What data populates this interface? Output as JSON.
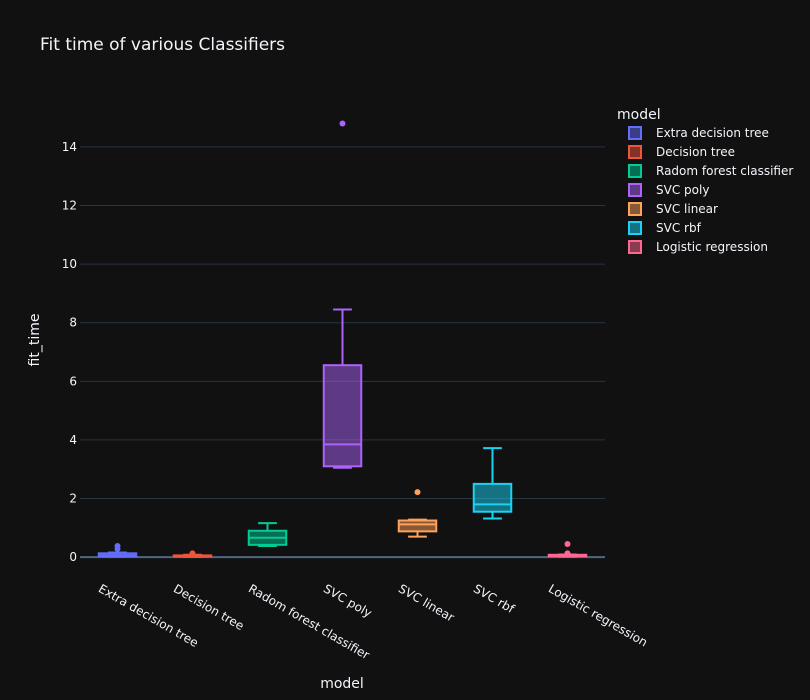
{
  "chart_data": {
    "type": "box",
    "title": "Fit time of various Classifiers",
    "xlabel": "model",
    "ylabel": "fit_time",
    "ylim": [
      -0.2,
      15.6
    ],
    "yticks": [
      0,
      2,
      4,
      6,
      8,
      10,
      12,
      14
    ],
    "grid": true,
    "legend": {
      "title": "model",
      "placement": "right"
    },
    "categories": [
      "Extra decision tree",
      "Decision tree",
      "Radom forest classifier",
      "SVC poly",
      "SVC linear",
      "SVC rbf",
      "Logistic regression"
    ],
    "series": [
      {
        "name": "Extra decision tree",
        "color": "#636efa",
        "min": 0.02,
        "q1": 0.03,
        "median": 0.06,
        "q3": 0.13,
        "max": 0.16,
        "outliers": [
          0.28,
          0.38
        ]
      },
      {
        "name": "Decision tree",
        "color": "#ef553b",
        "min": 0.01,
        "q1": 0.02,
        "median": 0.04,
        "q3": 0.06,
        "max": 0.08,
        "outliers": [
          0.13
        ]
      },
      {
        "name": "Radom forest classifier",
        "color": "#00cc96",
        "min": 0.38,
        "q1": 0.42,
        "median": 0.66,
        "q3": 0.9,
        "max": 1.16,
        "outliers": []
      },
      {
        "name": "SVC poly",
        "color": "#ab63fa",
        "min": 3.05,
        "q1": 3.1,
        "median": 3.85,
        "q3": 6.55,
        "max": 8.45,
        "outliers": [
          14.8
        ]
      },
      {
        "name": "SVC linear",
        "color": "#ffa15a",
        "min": 0.7,
        "q1": 0.88,
        "median": 1.12,
        "q3": 1.25,
        "max": 1.28,
        "outliers": [
          2.22
        ]
      },
      {
        "name": "SVC rbf",
        "color": "#19d3f3",
        "min": 1.32,
        "q1": 1.55,
        "median": 1.8,
        "q3": 2.5,
        "max": 3.72,
        "outliers": []
      },
      {
        "name": "Logistic regression",
        "color": "#ff6692",
        "min": 0.02,
        "q1": 0.03,
        "median": 0.05,
        "q3": 0.08,
        "max": 0.09,
        "outliers": [
          0.13,
          0.45
        ]
      }
    ]
  }
}
